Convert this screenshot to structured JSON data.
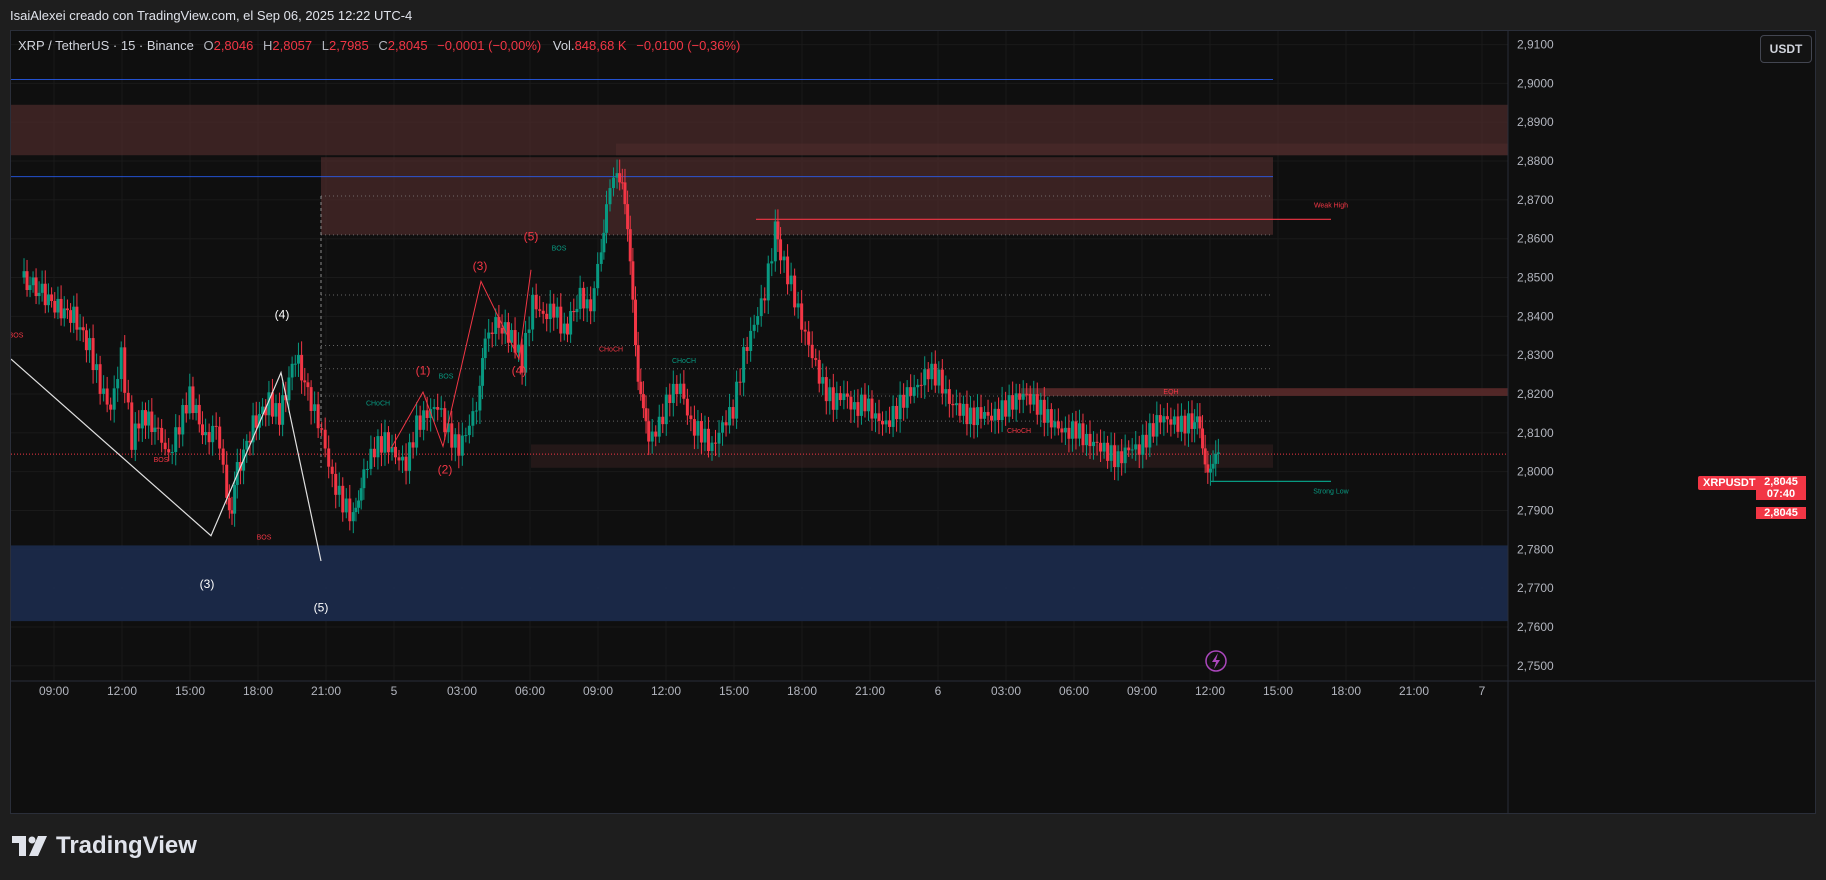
{
  "header": {
    "attribution": "IsaiAlexei creado con TradingView.com, el Sep 06, 2025 12:22 UTC-4"
  },
  "legend": {
    "symbol": "XRP / TetherUS · 15 · Binance",
    "o_label": "O",
    "o_value": "2,8046",
    "h_label": "H",
    "h_value": "2,8057",
    "l_label": "L",
    "l_value": "2,7985",
    "c_label": "C",
    "c_value": "2,8045",
    "change": "−0,0001 (−0,00%)",
    "vol_label": "Vol.",
    "vol_value": "848,68 K",
    "vol_change": "−0,0100 (−0,36%)"
  },
  "currency_button": "USDT",
  "ticker_tag": "XRPUSDT",
  "price_tag": {
    "price": "2,8045",
    "countdown": "07:40"
  },
  "price_tag_2": "2,8045",
  "footer": {
    "brand": "TradingView"
  },
  "colors": {
    "up": "#089981",
    "down": "#f23645",
    "grid": "#1a1a1a",
    "supply_zone": "#4a2a2a",
    "demand_zone": "#1b2a4a",
    "blue_line": "#2962ff"
  },
  "chart_data": {
    "type": "candlestick",
    "yticks": [
      "2,9100",
      "2,9000",
      "2,8900",
      "2,8800",
      "2,8700",
      "2,8600",
      "2,8500",
      "2,8400",
      "2,8300",
      "2,8200",
      "2,8100",
      "2,8000",
      "2,7900",
      "2,7800",
      "2,7700",
      "2,7600",
      "2,7500"
    ],
    "ylim": [
      2.7435,
      2.9135
    ],
    "xticks": [
      "09:00",
      "12:00",
      "15:00",
      "18:00",
      "21:00",
      "5",
      "03:00",
      "06:00",
      "09:00",
      "12:00",
      "15:00",
      "18:00",
      "21:00",
      "6",
      "03:00",
      "06:00",
      "09:00",
      "12:00",
      "15:00",
      "18:00",
      "21:00",
      "7"
    ],
    "last_price": 2.8045,
    "price_path": [
      [
        0,
        2.85
      ],
      [
        8,
        2.846
      ],
      [
        14,
        2.842
      ],
      [
        20,
        2.84
      ],
      [
        26,
        2.832
      ],
      [
        30,
        2.822
      ],
      [
        34,
        2.816
      ],
      [
        38,
        2.83
      ],
      [
        42,
        2.808
      ],
      [
        46,
        2.815
      ],
      [
        52,
        2.81
      ],
      [
        56,
        2.804
      ],
      [
        60,
        2.812
      ],
      [
        64,
        2.82
      ],
      [
        70,
        2.808
      ],
      [
        74,
        2.812
      ],
      [
        78,
        2.795
      ],
      [
        80,
        2.79
      ],
      [
        82,
        2.8
      ],
      [
        88,
        2.812
      ],
      [
        94,
        2.818
      ],
      [
        98,
        2.814
      ],
      [
        104,
        2.83
      ],
      [
        110,
        2.818
      ],
      [
        114,
        2.81
      ],
      [
        118,
        2.798
      ],
      [
        122,
        2.792
      ],
      [
        126,
        2.788
      ],
      [
        128,
        2.795
      ],
      [
        130,
        2.8
      ],
      [
        134,
        2.806
      ],
      [
        138,
        2.808
      ],
      [
        142,
        2.804
      ],
      [
        146,
        2.802
      ],
      [
        150,
        2.812
      ],
      [
        154,
        2.815
      ],
      [
        158,
        2.817
      ],
      [
        162,
        2.81
      ],
      [
        166,
        2.806
      ],
      [
        170,
        2.812
      ],
      [
        174,
        2.82
      ],
      [
        176,
        2.834
      ],
      [
        180,
        2.838
      ],
      [
        186,
        2.835
      ],
      [
        190,
        2.828
      ],
      [
        194,
        2.844
      ],
      [
        198,
        2.84
      ],
      [
        202,
        2.842
      ],
      [
        206,
        2.836
      ],
      [
        212,
        2.845
      ],
      [
        216,
        2.842
      ],
      [
        220,
        2.858
      ],
      [
        222,
        2.87
      ],
      [
        226,
        2.878
      ],
      [
        228,
        2.876
      ],
      [
        230,
        2.86
      ],
      [
        232,
        2.845
      ],
      [
        234,
        2.825
      ],
      [
        236,
        2.814
      ],
      [
        238,
        2.808
      ],
      [
        242,
        2.812
      ],
      [
        246,
        2.82
      ],
      [
        250,
        2.822
      ],
      [
        254,
        2.812
      ],
      [
        258,
        2.81
      ],
      [
        262,
        2.806
      ],
      [
        266,
        2.812
      ],
      [
        270,
        2.816
      ],
      [
        274,
        2.83
      ],
      [
        278,
        2.838
      ],
      [
        282,
        2.846
      ],
      [
        286,
        2.862
      ],
      [
        288,
        2.856
      ],
      [
        292,
        2.848
      ],
      [
        296,
        2.838
      ],
      [
        300,
        2.83
      ],
      [
        304,
        2.822
      ],
      [
        308,
        2.818
      ],
      [
        312,
        2.82
      ],
      [
        316,
        2.816
      ],
      [
        320,
        2.818
      ],
      [
        324,
        2.814
      ],
      [
        328,
        2.812
      ],
      [
        332,
        2.816
      ],
      [
        336,
        2.82
      ],
      [
        340,
        2.822
      ],
      [
        344,
        2.826
      ],
      [
        348,
        2.824
      ],
      [
        352,
        2.818
      ],
      [
        356,
        2.816
      ],
      [
        360,
        2.814
      ],
      [
        364,
        2.815
      ],
      [
        368,
        2.814
      ],
      [
        372,
        2.816
      ],
      [
        376,
        2.818
      ],
      [
        380,
        2.82
      ],
      [
        384,
        2.818
      ],
      [
        388,
        2.815
      ],
      [
        392,
        2.812
      ],
      [
        396,
        2.81
      ],
      [
        400,
        2.811
      ],
      [
        404,
        2.808
      ],
      [
        408,
        2.807
      ],
      [
        412,
        2.805
      ],
      [
        416,
        2.803
      ],
      [
        420,
        2.806
      ],
      [
        424,
        2.806
      ],
      [
        428,
        2.81
      ],
      [
        432,
        2.814
      ],
      [
        436,
        2.813
      ],
      [
        440,
        2.812
      ],
      [
        444,
        2.813
      ],
      [
        446,
        2.812
      ],
      [
        448,
        2.806
      ],
      [
        450,
        2.802
      ],
      [
        452,
        2.8
      ],
      [
        454,
        2.8045
      ]
    ],
    "zones": [
      {
        "kind": "supply",
        "from": 2.8815,
        "to": 2.8945
      },
      {
        "kind": "supply",
        "from": 2.8815,
        "to": 2.8845
      },
      {
        "kind": "supply",
        "from": 2.871,
        "to": 2.881
      },
      {
        "kind": "supply",
        "from": 2.861,
        "to": 2.871
      },
      {
        "kind": "demand",
        "from": 2.7615,
        "to": 2.781
      },
      {
        "kind": "eqh",
        "from": 2.8195,
        "to": 2.8215
      },
      {
        "kind": "mid",
        "from": 2.801,
        "to": 2.807
      }
    ],
    "blue_lines": [
      2.901,
      2.876
    ],
    "labels": {
      "weak_high": "Weak High",
      "strong_low": "Strong Low",
      "eqh": "EQH",
      "bos": "BOS",
      "choch": "CHoCH"
    },
    "waves_white": [
      "(3)",
      "(4)",
      "(5)"
    ],
    "waves_red": [
      "(1)",
      "(2)",
      "(3)",
      "(4)",
      "(5)"
    ]
  }
}
